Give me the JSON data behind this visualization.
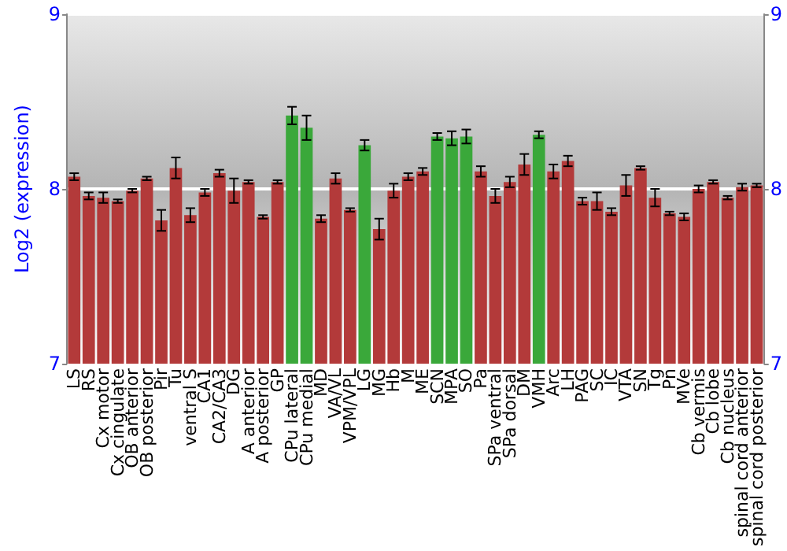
{
  "chart_data": {
    "type": "bar",
    "ylabel": "Log2 (expression)",
    "categories": [
      "LS",
      "RS",
      "Cx motor",
      "Cx cingulate",
      "OB anterior",
      "OB posterior",
      "Pir",
      "Tu",
      "ventral S",
      "CA1",
      "CA2/CA3",
      "DG",
      "A anterior",
      "A posterior",
      "GP",
      "CPu lateral",
      "CPu medial",
      "MD",
      "VA/VL",
      "VPM/VPL",
      "LG",
      "MG",
      "Hb",
      "M",
      "ME",
      "SCN",
      "MPA",
      "SO",
      "Pa",
      "SPa ventral",
      "SPa dorsal",
      "DM",
      "VMH",
      "Arc",
      "LH",
      "PAG",
      "SC",
      "IC",
      "VTA",
      "SN",
      "Tg",
      "Pn",
      "MVe",
      "Cb vermis",
      "Cb lobe",
      "Cb nucleus",
      "spinal cord anterior",
      "spinal cord posterior"
    ],
    "values": [
      8.07,
      7.96,
      7.95,
      7.93,
      7.99,
      8.06,
      7.82,
      8.12,
      7.85,
      7.98,
      8.09,
      7.99,
      8.04,
      7.84,
      8.04,
      8.42,
      8.35,
      7.83,
      8.06,
      7.88,
      8.25,
      7.77,
      7.99,
      8.07,
      8.1,
      8.3,
      8.29,
      8.3,
      8.1,
      7.96,
      8.04,
      8.14,
      8.31,
      8.1,
      8.16,
      7.93,
      7.93,
      7.87,
      8.02,
      8.12,
      7.95,
      7.86,
      7.84,
      8.0,
      8.04,
      7.95,
      8.01,
      8.02
    ],
    "errors": [
      0.02,
      0.02,
      0.03,
      0.01,
      0.01,
      0.01,
      0.06,
      0.06,
      0.04,
      0.02,
      0.02,
      0.07,
      0.01,
      0.01,
      0.01,
      0.05,
      0.07,
      0.02,
      0.03,
      0.01,
      0.03,
      0.06,
      0.04,
      0.02,
      0.02,
      0.02,
      0.04,
      0.04,
      0.03,
      0.04,
      0.03,
      0.06,
      0.02,
      0.04,
      0.03,
      0.02,
      0.05,
      0.02,
      0.06,
      0.01,
      0.05,
      0.01,
      0.02,
      0.02,
      0.01,
      0.01,
      0.02,
      0.01
    ],
    "colors": [
      "#b33a3a",
      "#b33a3a",
      "#b33a3a",
      "#b33a3a",
      "#b33a3a",
      "#b33a3a",
      "#b33a3a",
      "#b33a3a",
      "#b33a3a",
      "#b33a3a",
      "#b33a3a",
      "#b33a3a",
      "#b33a3a",
      "#b33a3a",
      "#b33a3a",
      "#3aa83a",
      "#3aa83a",
      "#b33a3a",
      "#b33a3a",
      "#b33a3a",
      "#3aa83a",
      "#b33a3a",
      "#b33a3a",
      "#b33a3a",
      "#b33a3a",
      "#3aa83a",
      "#3aa83a",
      "#3aa83a",
      "#b33a3a",
      "#b33a3a",
      "#b33a3a",
      "#b33a3a",
      "#3aa83a",
      "#b33a3a",
      "#b33a3a",
      "#b33a3a",
      "#b33a3a",
      "#b33a3a",
      "#b33a3a",
      "#b33a3a",
      "#b33a3a",
      "#b33a3a",
      "#b33a3a",
      "#b33a3a",
      "#b33a3a",
      "#b33a3a",
      "#b33a3a",
      "#b33a3a"
    ],
    "ylim": [
      7,
      9
    ],
    "yticks": [
      7,
      8,
      9
    ],
    "y2lim": [
      7,
      9
    ],
    "y2ticks": [
      7,
      8,
      9
    ],
    "grid": "y"
  }
}
